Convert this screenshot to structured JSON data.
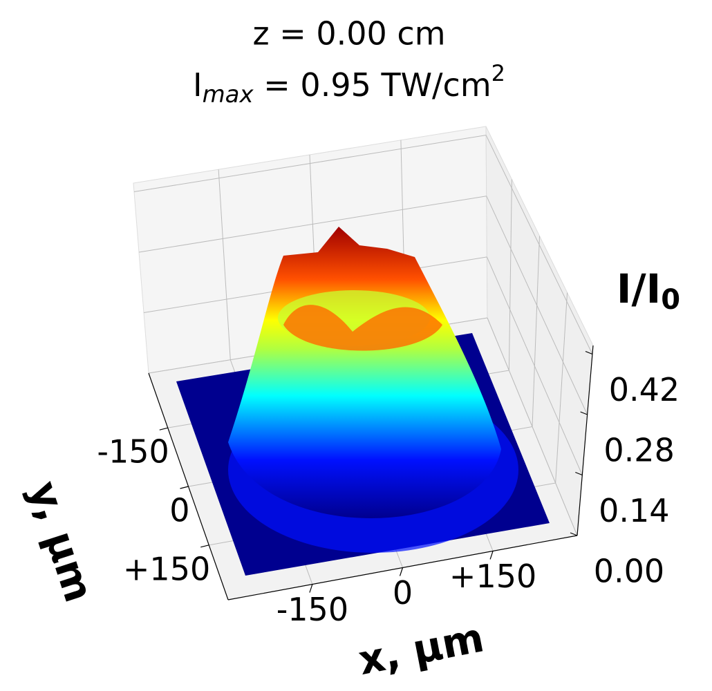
{
  "chart_data": {
    "type": "surface3d",
    "title": "z = 0.00 cm",
    "subtitle": [
      "I",
      "max",
      " = 0.95 TW/cm",
      "2"
    ],
    "xlabel": "x, µm",
    "ylabel": "y, µm",
    "zlabel": [
      "I/I",
      "0"
    ],
    "xlim": [
      -290,
      290
    ],
    "xticks": [
      -150,
      0,
      {
        "value": 150,
        "label": "+150"
      }
    ],
    "ylim": [
      -290,
      290
    ],
    "yticks": [
      -150,
      0,
      {
        "value": 150,
        "label": "+150"
      }
    ],
    "zlim": [
      0,
      0.44
    ],
    "zticks": [
      {
        "value": 0,
        "label": "0.00"
      },
      0.14,
      0.28,
      0.42
    ],
    "colormap": "jet",
    "grid": true
  }
}
